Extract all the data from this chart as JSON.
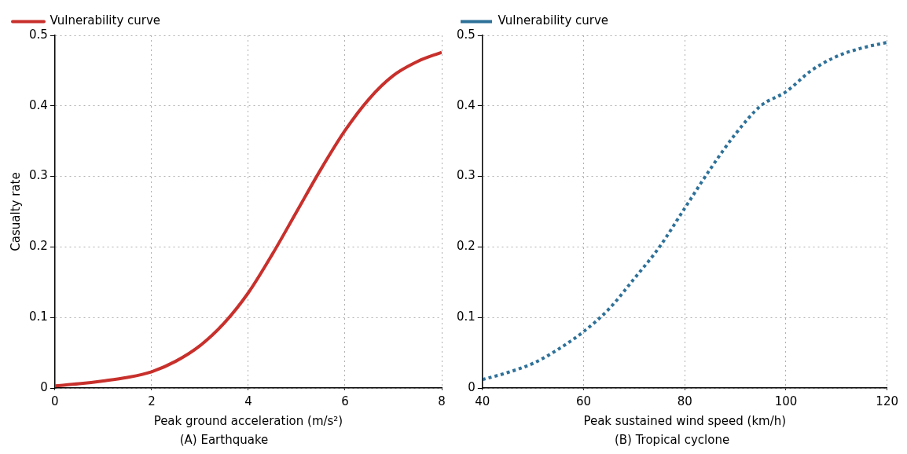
{
  "chart_data": [
    {
      "type": "line",
      "title": "(A) Earthquake",
      "xlabel": "Peak ground acceleration (m/s²)",
      "ylabel": "Casualty rate",
      "x": [
        0,
        0.5,
        1,
        1.5,
        2,
        2.5,
        3,
        3.5,
        4,
        4.5,
        5,
        5.5,
        6,
        6.5,
        7,
        7.5,
        8
      ],
      "series": [
        {
          "name": "Vulnerability curve",
          "color": "#c8302c",
          "values": [
            0.003,
            0.006,
            0.01,
            0.015,
            0.023,
            0.038,
            0.06,
            0.092,
            0.135,
            0.19,
            0.25,
            0.31,
            0.365,
            0.41,
            0.443,
            0.463,
            0.476
          ]
        }
      ],
      "xlim": [
        0,
        8
      ],
      "xticks": [
        0,
        2,
        4,
        6,
        8
      ],
      "ylim": [
        0,
        0.5
      ],
      "yticks": [
        0,
        0.1,
        0.2,
        0.3,
        0.4,
        0.5
      ],
      "grid": true,
      "legend": "top left",
      "marker": "none",
      "line_style": "solid"
    },
    {
      "type": "line",
      "title": "(B) Tropical cyclone",
      "xlabel": "Peak sustained wind speed (km/h)",
      "x": [
        40,
        45,
        50,
        55,
        60,
        65,
        70,
        75,
        80,
        85,
        90,
        95,
        100,
        105,
        110,
        115,
        120
      ],
      "series": [
        {
          "name": "Vulnerability curve",
          "color": "#2e7199",
          "values": [
            0.012,
            0.022,
            0.035,
            0.055,
            0.08,
            0.112,
            0.155,
            0.2,
            0.255,
            0.31,
            0.36,
            0.4,
            0.42,
            0.45,
            0.47,
            0.482,
            0.49
          ]
        }
      ],
      "xlim": [
        40,
        120
      ],
      "xticks": [
        40,
        60,
        80,
        100,
        120
      ],
      "ylim": [
        0,
        0.5
      ],
      "yticks": [
        0,
        0.1,
        0.2,
        0.3,
        0.4,
        0.5
      ],
      "grid": true,
      "legend": "top left",
      "marker": "none",
      "line_style": "dotted"
    }
  ]
}
